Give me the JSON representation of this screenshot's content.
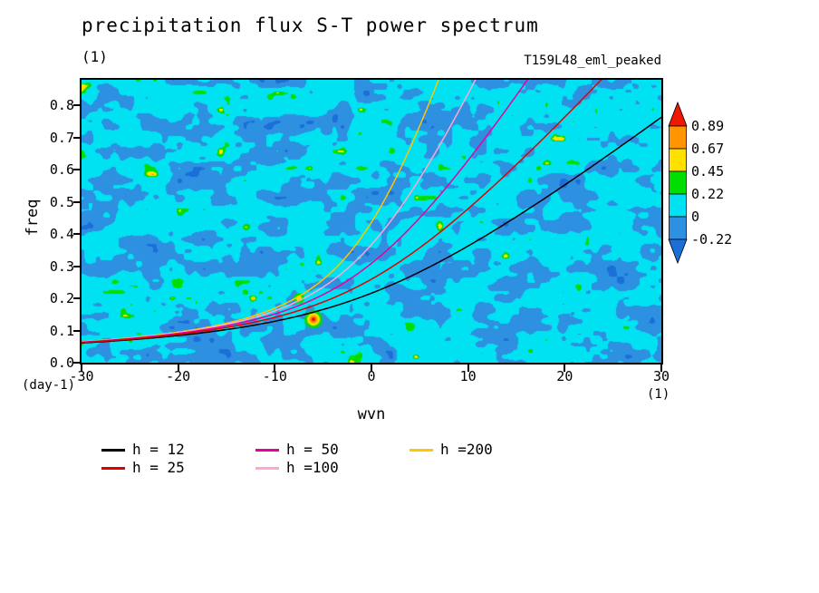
{
  "title": "precipitation flux S-T power spectrum",
  "panel_label": "(1)",
  "experiment": "T159L48_eml_peaked",
  "axes": {
    "x_label": "wvn",
    "x_unit": "(1)",
    "y_label": "freq",
    "y_unit": "(day-1)",
    "x_range": [
      -30,
      30
    ],
    "y_range": [
      0,
      0.88
    ],
    "x_ticks": [
      "-30",
      "-20",
      "-10",
      "0",
      "10",
      "20",
      "30"
    ],
    "y_ticks": [
      "0.0",
      "0.1",
      "0.2",
      "0.3",
      "0.4",
      "0.5",
      "0.6",
      "0.7",
      "0.8"
    ]
  },
  "colorbar": {
    "tick_labels": [
      "0.89",
      "0.67",
      "0.45",
      "0.22",
      "0",
      "-0.22"
    ],
    "segment_colors": [
      "#ff9500",
      "#ffe000",
      "#00dd00",
      "#00e1f2",
      "#2e90e0"
    ],
    "arrow_top_color": "#f01800",
    "arrow_bottom_color": "#1a6fd8"
  },
  "legend": {
    "items": [
      {
        "label": "h = 12",
        "color": "#000000"
      },
      {
        "label": "h = 25",
        "color": "#e00000"
      },
      {
        "label": "h = 50",
        "color": "#e8009d"
      },
      {
        "label": "h =100",
        "color": "#ffa6d2"
      },
      {
        "label": "h =200",
        "color": "#fcc800"
      }
    ]
  },
  "chart_data": {
    "type": "heatmap",
    "title": "precipitation flux S-T power spectrum",
    "xlabel": "wvn (1)",
    "ylabel": "freq (day-1)",
    "x_range": [
      -30,
      30
    ],
    "y_range": [
      0,
      0.88
    ],
    "x_ticks": [
      -30,
      -20,
      -10,
      0,
      10,
      20,
      30
    ],
    "y_ticks": [
      0.0,
      0.1,
      0.2,
      0.3,
      0.4,
      0.5,
      0.6,
      0.7,
      0.8
    ],
    "contour_levels": [
      -0.22,
      0,
      0.22,
      0.45,
      0.67,
      0.89
    ],
    "level_colors": {
      "below_-0.22": "#1a6fd8",
      "-0.22_to_0": "#2e90e0",
      "0_to_0.22": "#00e1f2",
      "0.22_to_0.45": "#00dd00",
      "0.45_to_0.67": "#ffe000",
      "0.67_to_0.89": "#ff9500",
      "above_0.89": "#f01800"
    },
    "field_description": "spatially noisy spectral power field dominated by values between -0.22 and 0.22 (cyan/blue speckle), scattered green peaks (0.22-0.45) and rare yellow-to-red local maxima",
    "peaks": [
      {
        "wvn": -6,
        "freq": 0.135,
        "value": "> 0.67",
        "rings": [
          [
            "#00dd00",
            10
          ],
          [
            "#ffe000",
            7
          ],
          [
            "#ff9500",
            4.5
          ],
          [
            "#f01800",
            2.2
          ]
        ]
      },
      {
        "wvn": -7.5,
        "freq": 0.2,
        "value": "0.45 - 0.67",
        "rings": [
          [
            "#00dd00",
            6
          ],
          [
            "#ffe000",
            3
          ]
        ]
      }
    ],
    "dispersion_curves": [
      {
        "label": "h = 12",
        "equivalent_depth_m": 12,
        "color": "#000000"
      },
      {
        "label": "h = 25",
        "equivalent_depth_m": 25,
        "color": "#e00000"
      },
      {
        "label": "h = 50",
        "equivalent_depth_m": 50,
        "color": "#e8009d"
      },
      {
        "label": "h =100",
        "equivalent_depth_m": 100,
        "color": "#ffa6d2"
      },
      {
        "label": "h =200",
        "equivalent_depth_m": 200,
        "color": "#fcc800"
      }
    ],
    "noise": {
      "seed": 7,
      "thresholds": [
        0.16,
        0.46,
        0.835,
        0.905,
        0.948,
        0.972
      ]
    }
  }
}
